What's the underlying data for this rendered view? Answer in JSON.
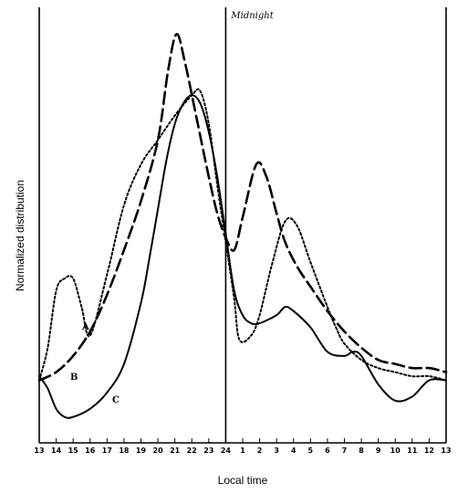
{
  "chart_data": {
    "type": "line",
    "xlabel": "Local time",
    "ylabel": "Normalized distribution",
    "xlim": [
      13,
      37
    ],
    "ylim": [
      0,
      100
    ],
    "x_ticks": [
      13,
      14,
      15,
      16,
      17,
      18,
      19,
      20,
      21,
      22,
      23,
      24,
      25,
      26,
      27,
      28,
      29,
      30,
      31,
      32,
      33,
      34,
      35,
      36,
      37
    ],
    "x_tick_labels": [
      "13",
      "14",
      "15",
      "16",
      "17",
      "18",
      "19",
      "20",
      "21",
      "22",
      "23",
      "24",
      "1",
      "2",
      "3",
      "4",
      "5",
      "6",
      "7",
      "8",
      "9",
      "10",
      "11",
      "12",
      "13"
    ],
    "grid": false,
    "legend": "none",
    "annotations": [
      {
        "text": "Midnight",
        "x": 24
      },
      {
        "text": "A"
      },
      {
        "text": "B"
      },
      {
        "text": "C"
      }
    ],
    "series": [
      {
        "name": "A",
        "style": "dotted",
        "x": [
          13,
          13.5,
          14,
          14.5,
          15,
          15.5,
          16,
          17,
          18,
          19,
          20,
          21,
          22,
          22.5,
          23,
          23.5,
          24,
          24.5,
          24.8,
          25.5,
          26,
          26.7,
          27.5,
          28.2,
          29,
          30,
          30.5,
          31,
          32,
          33,
          34,
          35,
          36,
          37
        ],
        "y": [
          12,
          20,
          34,
          37,
          37,
          30,
          23,
          38,
          55,
          65,
          71,
          77,
          82,
          83,
          75,
          60,
          46,
          32,
          22,
          23,
          28,
          40,
          51,
          50,
          41,
          30,
          25,
          21,
          17,
          15,
          14,
          13,
          13,
          12
        ]
      },
      {
        "name": "B",
        "style": "long-dashed",
        "x": [
          13,
          14,
          15,
          16,
          17,
          18,
          19,
          20,
          20.6,
          21.1,
          21.6,
          22.3,
          23,
          23.5,
          24,
          24.5,
          25,
          25.8,
          26.4,
          27,
          27.5,
          28.2,
          29,
          30,
          31,
          32,
          33,
          34,
          35,
          36,
          37
        ],
        "y": [
          12,
          14,
          18,
          24,
          33,
          44,
          56,
          71,
          88,
          97,
          90,
          76,
          62,
          53,
          47,
          44,
          52,
          65,
          62,
          53,
          46,
          40,
          35,
          29,
          24,
          20,
          17,
          16,
          15,
          15,
          14
        ]
      },
      {
        "name": "C",
        "style": "solid",
        "x": [
          13,
          13.5,
          14,
          14.5,
          15,
          16,
          17,
          18,
          19,
          19.5,
          20,
          20.5,
          21,
          21.5,
          22,
          22.5,
          23,
          23.5,
          24,
          24.5,
          25,
          25.5,
          26,
          27,
          27.5,
          28,
          29,
          30,
          31,
          31.5,
          32,
          33,
          34,
          35,
          36,
          37
        ],
        "y": [
          13,
          10,
          5,
          3,
          3,
          5,
          9,
          16,
          31,
          42,
          54,
          66,
          75,
          80,
          82,
          80,
          73,
          62,
          48,
          34,
          28,
          26,
          26,
          28,
          30,
          29,
          25,
          19,
          18,
          19,
          18,
          11,
          7,
          8,
          12,
          12
        ]
      }
    ]
  }
}
